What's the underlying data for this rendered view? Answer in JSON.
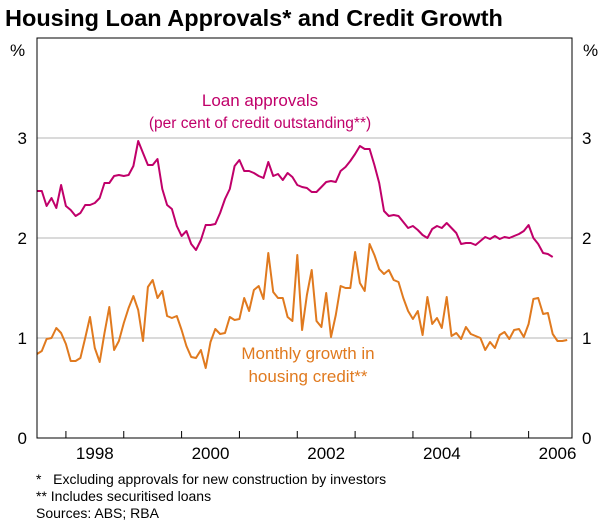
{
  "chart_data": {
    "type": "line",
    "title": "Housing Loan Approvals* and Credit Growth",
    "y_unit": "%",
    "ylim": [
      0,
      4
    ],
    "yticks": [
      "0",
      "1",
      "2",
      "3"
    ],
    "xlim": [
      1997.5,
      2006.75
    ],
    "xticks": [
      {
        "value": 1998,
        "label": "1998"
      },
      {
        "value": 2000,
        "label": "2000"
      },
      {
        "value": 2002,
        "label": "2002"
      },
      {
        "value": 2004,
        "label": "2004"
      },
      {
        "value": 2006,
        "label": "2006"
      }
    ],
    "grid": true,
    "series": [
      {
        "name": "Loan approvals",
        "subtitle": "(per cent of credit outstanding**)",
        "color": "#c0006a",
        "x_start": 1997.5,
        "x_step": 0.08333,
        "values": [
          2.47,
          2.47,
          2.32,
          2.4,
          2.3,
          2.53,
          2.32,
          2.28,
          2.22,
          2.25,
          2.33,
          2.33,
          2.35,
          2.4,
          2.55,
          2.55,
          2.62,
          2.63,
          2.62,
          2.63,
          2.72,
          2.97,
          2.85,
          2.73,
          2.73,
          2.79,
          2.49,
          2.33,
          2.29,
          2.12,
          2.02,
          2.07,
          1.94,
          1.88,
          1.98,
          2.13,
          2.13,
          2.14,
          2.25,
          2.39,
          2.49,
          2.72,
          2.78,
          2.67,
          2.67,
          2.65,
          2.62,
          2.6,
          2.76,
          2.62,
          2.64,
          2.58,
          2.65,
          2.61,
          2.53,
          2.51,
          2.5,
          2.46,
          2.46,
          2.51,
          2.56,
          2.57,
          2.56,
          2.67,
          2.71,
          2.77,
          2.84,
          2.92,
          2.89,
          2.89,
          2.73,
          2.55,
          2.27,
          2.22,
          2.23,
          2.22,
          2.16,
          2.1,
          2.12,
          2.08,
          2.03,
          2.0,
          2.09,
          2.12,
          2.1,
          2.15,
          2.1,
          2.05,
          1.94,
          1.95,
          1.95,
          1.93,
          1.97,
          2.01,
          1.99,
          2.02,
          1.99,
          2.01,
          2.0,
          2.02,
          2.04,
          2.07,
          2.13,
          2.0,
          1.94,
          1.85,
          1.84,
          1.81
        ]
      },
      {
        "name": "Monthly growth in",
        "subtitle": "housing credit**",
        "color": "#e07a1f",
        "x_start": 1997.5,
        "x_step": 0.08333,
        "values": [
          0.84,
          0.87,
          0.99,
          1.0,
          1.1,
          1.05,
          0.94,
          0.77,
          0.77,
          0.8,
          1.0,
          1.21,
          0.9,
          0.76,
          1.05,
          1.31,
          0.88,
          0.97,
          1.15,
          1.3,
          1.42,
          1.28,
          0.97,
          1.51,
          1.58,
          1.4,
          1.47,
          1.22,
          1.2,
          1.22,
          1.08,
          0.92,
          0.81,
          0.8,
          0.88,
          0.7,
          0.96,
          1.09,
          1.04,
          1.05,
          1.21,
          1.18,
          1.19,
          1.4,
          1.27,
          1.48,
          1.52,
          1.39,
          1.85,
          1.46,
          1.4,
          1.4,
          1.21,
          1.17,
          1.83,
          1.08,
          1.43,
          1.68,
          1.17,
          1.11,
          1.45,
          1.01,
          1.23,
          1.52,
          1.5,
          1.5,
          1.86,
          1.55,
          1.47,
          1.94,
          1.83,
          1.69,
          1.64,
          1.68,
          1.58,
          1.56,
          1.4,
          1.27,
          1.19,
          1.27,
          1.03,
          1.41,
          1.14,
          1.2,
          1.1,
          1.41,
          1.02,
          1.05,
          0.99,
          1.11,
          1.04,
          1.02,
          1.0,
          0.88,
          0.96,
          0.9,
          1.03,
          1.06,
          0.99,
          1.08,
          1.09,
          1.01,
          1.14,
          1.39,
          1.4,
          1.24,
          1.25,
          1.04,
          0.97,
          0.97,
          0.98
        ]
      }
    ],
    "footnotes": [
      "*   Excluding approvals for new construction by investors",
      "** Includes securitised loans",
      "Sources: ABS; RBA"
    ]
  }
}
